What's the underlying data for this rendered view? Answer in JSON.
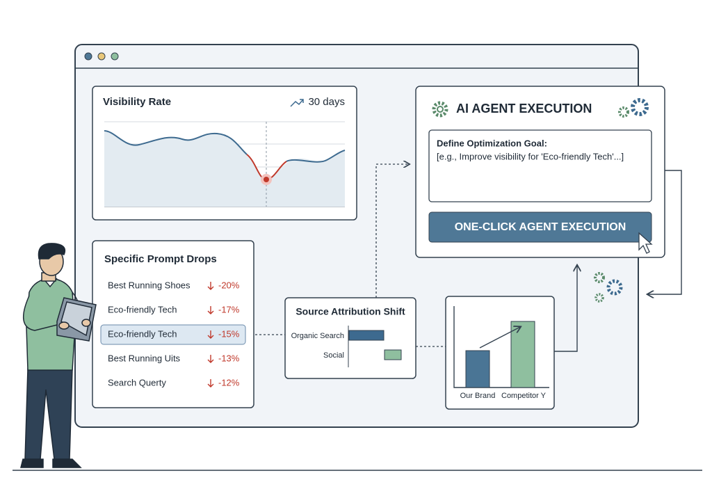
{
  "visibility_card": {
    "title": "Visibility Rate",
    "period": "30 days"
  },
  "prompt_drops": {
    "title": "Specific Prompt Drops",
    "items": [
      {
        "label": "Best Running Shoes",
        "change": "-20%"
      },
      {
        "label": "Eco-friendly Tech",
        "change": "-17%"
      },
      {
        "label": "Eco-friendly Tech",
        "change": "-15%"
      },
      {
        "label": "Best Running Uits",
        "change": "-13%"
      },
      {
        "label": "Search Querty",
        "change": "-12%"
      }
    ]
  },
  "source_attribution": {
    "title": "Source Attribution Shift",
    "labels": [
      "Organic Search",
      "Social"
    ]
  },
  "comparison": {
    "labels": [
      "Our Brand",
      "Competitor Y"
    ]
  },
  "agent_panel": {
    "title": "AI AGENT EXECUTION",
    "goal_label": "Define Optimization Goal:",
    "goal_placeholder": "[e.g., Improve visibility for 'Eco-friendly Tech'...]",
    "button": "ONE-CLICK AGENT EXECUTION"
  }
}
